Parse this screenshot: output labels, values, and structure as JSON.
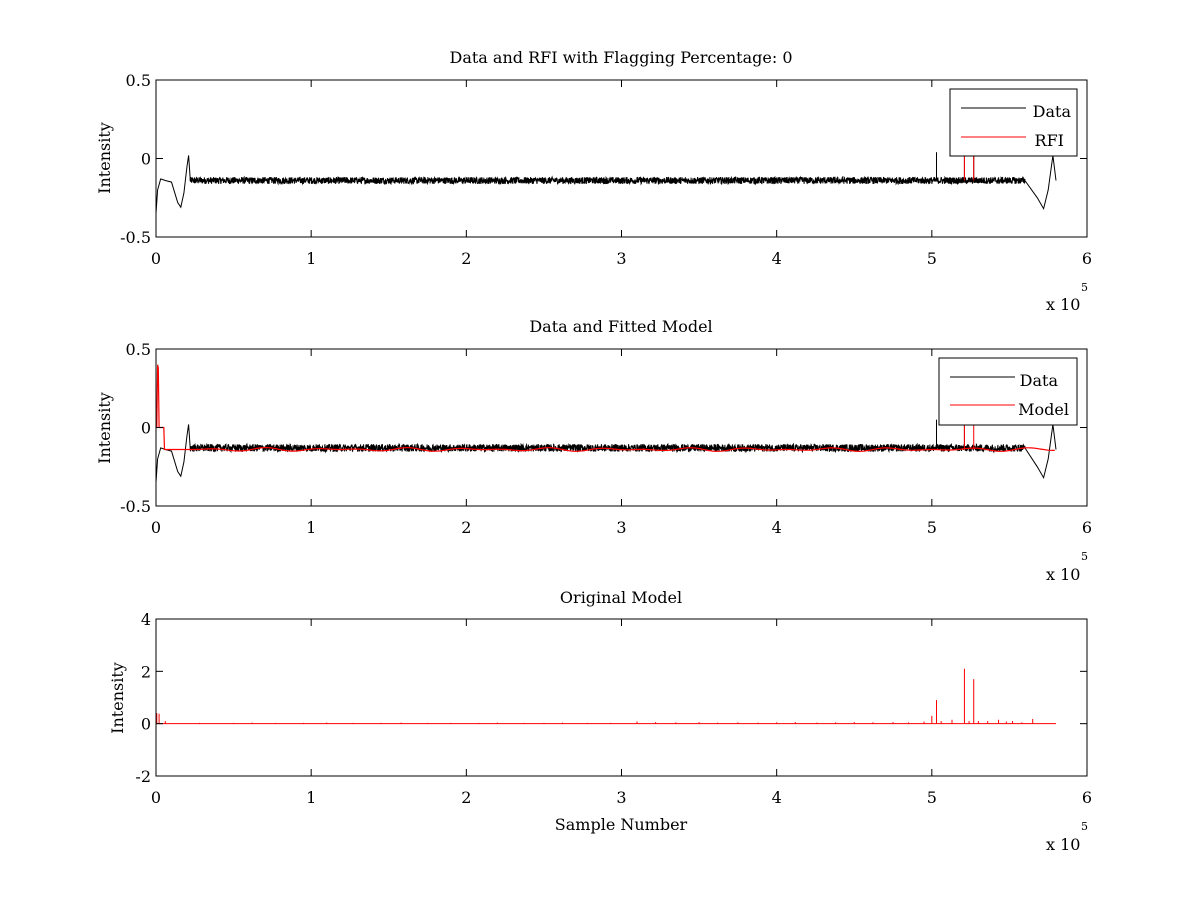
{
  "figure": {
    "background": "#ffffff"
  },
  "chart_data": [
    {
      "type": "line",
      "title": "Data and RFI with Flagging Percentage: 0",
      "xlabel": "",
      "ylabel": "Intensity",
      "xlim": [
        0,
        6
      ],
      "ylim": [
        -0.5,
        0.5
      ],
      "x_ticks": [
        "0",
        "1",
        "2",
        "3",
        "4",
        "5",
        "6"
      ],
      "y_ticks": [
        "0.5",
        "0",
        "-0.5"
      ],
      "x_multiplier": {
        "text": "x 10",
        "exponent": "5"
      },
      "legend": {
        "placement": "top-right",
        "entries": [
          {
            "label": "Data",
            "color": "#000000"
          },
          {
            "label": "RFI",
            "color": "#ff0000"
          }
        ]
      },
      "series": [
        {
          "name": "Data",
          "color": "#000000",
          "kind": "noise",
          "baseline": -0.14,
          "noise_amplitude": 0.022,
          "x_range": [
            0,
            5.8
          ],
          "features": [
            {
              "x": [
                0.0,
                0.01,
                0.03,
                0.06,
                0.1,
                0.14,
                0.16,
                0.18,
                0.2,
                0.21,
                0.22
              ],
              "y": [
                -0.35,
                -0.2,
                -0.13,
                -0.14,
                -0.15,
                -0.28,
                -0.31,
                -0.22,
                -0.05,
                0.02,
                -0.12
              ]
            },
            {
              "x": [
                5.6,
                5.68,
                5.72,
                5.75,
                5.78,
                5.8
              ],
              "y": [
                -0.14,
                -0.25,
                -0.32,
                -0.2,
                0.02,
                -0.14
              ]
            }
          ],
          "spikes": [
            {
              "x": 5.03,
              "y": 0.04
            },
            {
              "x": 5.21,
              "y": 0.08
            },
            {
              "x": 5.27,
              "y": 0.08
            }
          ]
        },
        {
          "name": "RFI",
          "color": "#ff0000",
          "kind": "spikes",
          "spikes": [
            {
              "x": 5.21,
              "y": 0.08
            },
            {
              "x": 5.27,
              "y": 0.08
            }
          ]
        }
      ]
    },
    {
      "type": "line",
      "title": "Data and Fitted Model",
      "xlabel": "",
      "ylabel": "Intensity",
      "xlim": [
        0,
        6
      ],
      "ylim": [
        -0.5,
        0.5
      ],
      "x_ticks": [
        "0",
        "1",
        "2",
        "3",
        "4",
        "5",
        "6"
      ],
      "y_ticks": [
        "0.5",
        "0",
        "-0.5"
      ],
      "x_multiplier": {
        "text": "x 10",
        "exponent": "5"
      },
      "legend": {
        "placement": "top-right",
        "entries": [
          {
            "label": "Data",
            "color": "#000000"
          },
          {
            "label": "Model",
            "color": "#ff0000"
          }
        ]
      },
      "series": [
        {
          "name": "Data",
          "color": "#000000",
          "kind": "noise",
          "baseline": -0.13,
          "noise_amplitude": 0.024,
          "x_range": [
            0,
            5.8
          ],
          "features": [
            {
              "x": [
                0.0,
                0.01,
                0.03,
                0.06,
                0.1,
                0.14,
                0.16,
                0.18,
                0.2,
                0.21,
                0.22
              ],
              "y": [
                -0.35,
                -0.2,
                -0.13,
                -0.14,
                -0.15,
                -0.28,
                -0.31,
                -0.22,
                -0.05,
                0.02,
                -0.12
              ]
            },
            {
              "x": [
                5.6,
                5.68,
                5.72,
                5.75,
                5.78,
                5.8
              ],
              "y": [
                -0.13,
                -0.25,
                -0.32,
                -0.2,
                0.02,
                -0.14
              ]
            }
          ],
          "spikes": [
            {
              "x": 5.03,
              "y": 0.05
            },
            {
              "x": 5.21,
              "y": 0.06
            }
          ]
        },
        {
          "name": "Model",
          "color": "#ff0000",
          "kind": "model",
          "baseline": -0.14,
          "ripple": 0.012,
          "x_range": [
            0.25,
            5.8
          ],
          "features": [
            {
              "x": [
                0.0,
                0.005,
                0.01,
                0.015,
                0.02,
                0.025,
                0.05,
                0.055,
                0.06,
                0.25
              ],
              "y": [
                0.0,
                0.0,
                0.4,
                0.38,
                0.0,
                0.0,
                0.0,
                -0.14,
                -0.14,
                -0.14
              ]
            }
          ],
          "spikes": [
            {
              "x": 5.21,
              "y": 0.05
            },
            {
              "x": 5.27,
              "y": 0.05
            }
          ]
        }
      ]
    },
    {
      "type": "line",
      "title": "Original Model",
      "xlabel": "Sample Number",
      "ylabel": "Intensity",
      "xlim": [
        0,
        6
      ],
      "ylim": [
        -2,
        4
      ],
      "x_ticks": [
        "0",
        "1",
        "2",
        "3",
        "4",
        "5",
        "6"
      ],
      "y_ticks": [
        "4",
        "2",
        "0",
        "-2"
      ],
      "x_multiplier": {
        "text": "x 10",
        "exponent": "5"
      },
      "series": [
        {
          "name": "",
          "color": "#ff0000",
          "kind": "flat",
          "baseline": 0,
          "x_range": [
            0,
            5.8
          ],
          "spikes": [
            {
              "x": 0.005,
              "y": 0.4
            },
            {
              "x": 0.02,
              "y": 0.38
            },
            {
              "x": 0.06,
              "y": 0.1
            },
            {
              "x": 0.28,
              "y": 0.03
            },
            {
              "x": 0.5,
              "y": 0.03
            },
            {
              "x": 0.62,
              "y": 0.04
            },
            {
              "x": 0.77,
              "y": 0.03
            },
            {
              "x": 0.95,
              "y": 0.03
            },
            {
              "x": 1.1,
              "y": 0.04
            },
            {
              "x": 1.27,
              "y": 0.03
            },
            {
              "x": 1.45,
              "y": 0.03
            },
            {
              "x": 1.58,
              "y": 0.04
            },
            {
              "x": 1.75,
              "y": 0.03
            },
            {
              "x": 1.9,
              "y": 0.03
            },
            {
              "x": 2.08,
              "y": 0.03
            },
            {
              "x": 2.2,
              "y": 0.04
            },
            {
              "x": 2.37,
              "y": 0.03
            },
            {
              "x": 2.5,
              "y": 0.03
            },
            {
              "x": 2.62,
              "y": 0.04
            },
            {
              "x": 2.78,
              "y": 0.03
            },
            {
              "x": 2.93,
              "y": 0.03
            },
            {
              "x": 3.1,
              "y": 0.08
            },
            {
              "x": 3.22,
              "y": 0.06
            },
            {
              "x": 3.35,
              "y": 0.05
            },
            {
              "x": 3.5,
              "y": 0.06
            },
            {
              "x": 3.62,
              "y": 0.04
            },
            {
              "x": 3.75,
              "y": 0.05
            },
            {
              "x": 3.88,
              "y": 0.04
            },
            {
              "x": 4.0,
              "y": 0.05
            },
            {
              "x": 4.12,
              "y": 0.06
            },
            {
              "x": 4.26,
              "y": 0.04
            },
            {
              "x": 4.38,
              "y": 0.05
            },
            {
              "x": 4.5,
              "y": 0.06
            },
            {
              "x": 4.62,
              "y": 0.05
            },
            {
              "x": 4.75,
              "y": 0.06
            },
            {
              "x": 4.85,
              "y": 0.05
            },
            {
              "x": 4.95,
              "y": 0.08
            },
            {
              "x": 5.0,
              "y": 0.3
            },
            {
              "x": 5.03,
              "y": 0.9
            },
            {
              "x": 5.06,
              "y": 0.1
            },
            {
              "x": 5.13,
              "y": 0.15
            },
            {
              "x": 5.21,
              "y": 2.1
            },
            {
              "x": 5.24,
              "y": 0.1
            },
            {
              "x": 5.27,
              "y": 1.7
            },
            {
              "x": 5.3,
              "y": 0.1
            },
            {
              "x": 5.36,
              "y": 0.1
            },
            {
              "x": 5.43,
              "y": 0.15
            },
            {
              "x": 5.48,
              "y": 0.08
            },
            {
              "x": 5.52,
              "y": 0.1
            },
            {
              "x": 5.58,
              "y": 0.05
            },
            {
              "x": 5.65,
              "y": 0.18
            }
          ]
        }
      ]
    }
  ]
}
